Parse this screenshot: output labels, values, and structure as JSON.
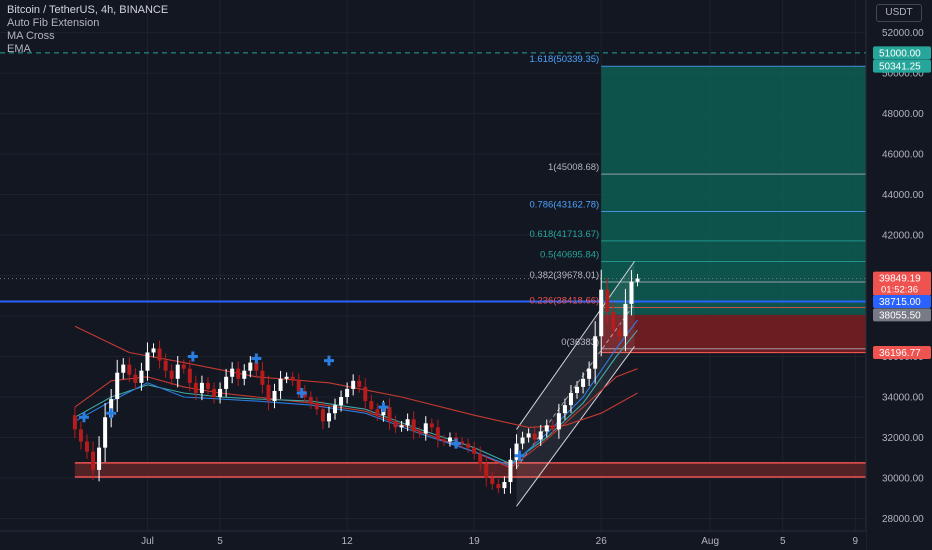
{
  "header": {
    "title": "Bitcoin / TetherUS, 4h, BINANCE",
    "indicators": [
      "Auto Fib Extension",
      "MA Cross",
      "EMA"
    ],
    "currency": "USDT"
  },
  "colors": {
    "background": "#131722",
    "bull": "#ffffff",
    "bear": "#b71c1c",
    "target_zone": "#0e5e52",
    "stop_zone": "#7d1f22",
    "support_zone": "#5a2428",
    "line_blue": "#2962ff",
    "ma_red": "#c43a31",
    "ma_teal": "#3fa9a5",
    "ema_blue": "#2a7de1",
    "fib_blue": "#4da3ff",
    "fib_teal": "#26a69a",
    "fib_red": "#ef5350",
    "fib_grey": "#b2b5be"
  },
  "chart_data": {
    "type": "candlestick",
    "symbol": "Bitcoin / TetherUS",
    "interval": "4h",
    "exchange": "BINANCE",
    "currency": "USDT",
    "y_axis": {
      "min": 27200,
      "max": 53300,
      "ticks": [
        "52000.00",
        "50000.00",
        "48000.00",
        "46000.00",
        "44000.00",
        "42000.00",
        "40000.00",
        "38000.00",
        "36000.00",
        "34000.00",
        "32000.00",
        "30000.00",
        "28000.00"
      ]
    },
    "x_axis": {
      "labels": [
        {
          "text": "Jul",
          "date": "2021-07-01"
        },
        {
          "text": "5",
          "date": "2021-07-05"
        },
        {
          "text": "12",
          "date": "2021-07-12"
        },
        {
          "text": "19",
          "date": "2021-07-19"
        },
        {
          "text": "26",
          "date": "2021-07-26"
        },
        {
          "text": "Aug",
          "date": "2021-08-01"
        },
        {
          "text": "5",
          "date": "2021-08-05"
        },
        {
          "text": "9",
          "date": "2021-08-09"
        }
      ]
    },
    "fib_levels": [
      {
        "label": "1.618(50339.35)",
        "value": 50339.35,
        "color": "#4da3ff"
      },
      {
        "label": "1(45008.68)",
        "value": 45008.68,
        "color": "#b2b5be"
      },
      {
        "label": "0.786(43162.78)",
        "value": 43162.78,
        "color": "#4da3ff"
      },
      {
        "label": "0.618(41713.67)",
        "value": 41713.67,
        "color": "#26a69a"
      },
      {
        "label": "0.5(40695.84)",
        "value": 40695.84,
        "color": "#26a69a"
      },
      {
        "label": "0.382(39678.01)",
        "value": 39678.01,
        "color": "#b2b5be"
      },
      {
        "label": "0.236(38418.66)",
        "value": 38418.66,
        "color": "#ef5350"
      },
      {
        "label": "0(36383)",
        "value": 36383,
        "color": "#b2b5be"
      }
    ],
    "price_tags": [
      {
        "text": "51000.00",
        "value": 51000,
        "color": "#26a69a"
      },
      {
        "text": "50341.25",
        "value": 50341.25,
        "color": "#26a69a"
      },
      {
        "text": "39849.19",
        "value": 39849.19,
        "sub": "01:52:36",
        "color": "#ef5350"
      },
      {
        "text": "38715.00",
        "value": 38715,
        "color": "#2962ff"
      },
      {
        "text": "38055.50",
        "value": 38055.5,
        "color": "#787b86"
      },
      {
        "text": "36196.77",
        "value": 36196.77,
        "color": "#ef5350"
      }
    ],
    "zones": [
      {
        "kind": "target",
        "x_start": "2021-07-26T00:00",
        "x_end": "2021-08-11",
        "y_low": 38055.5,
        "y_high": 50341.25
      },
      {
        "kind": "stop",
        "x_start": "2021-07-26T00:00",
        "x_end": "2021-08-11",
        "y_low": 36196.77,
        "y_high": 38055.5
      },
      {
        "kind": "support",
        "x_start": "2021-06-27",
        "x_end": "2021-08-11",
        "y_low": 30050,
        "y_high": 30750
      }
    ],
    "horizontal_lines": [
      {
        "value": 51000,
        "style": "dashed",
        "color": "#26a69a"
      },
      {
        "value": 38715,
        "style": "solid",
        "color": "#2962ff"
      },
      {
        "value": 39849.19,
        "style": "dotted",
        "color": "#787b86"
      }
    ],
    "channel": {
      "lower": [
        [
          "2021-07-21T08:00",
          28600
        ],
        [
          "2021-07-27T20:00",
          36500
        ]
      ],
      "upper": [
        [
          "2021-07-21T08:00",
          32400
        ],
        [
          "2021-07-27T20:00",
          40700
        ]
      ]
    },
    "series": [
      {
        "name": "MA Cross (slow)",
        "color": "#c43a31",
        "points": [
          [
            "2021-06-27",
            37500
          ],
          [
            "2021-06-30",
            36200
          ],
          [
            "2021-07-03",
            35700
          ],
          [
            "2021-07-07",
            35000
          ],
          [
            "2021-07-11",
            34700
          ],
          [
            "2021-07-15",
            34000
          ],
          [
            "2021-07-19",
            33100
          ],
          [
            "2021-07-22",
            32500
          ],
          [
            "2021-07-24",
            32600
          ],
          [
            "2021-07-26",
            33200
          ],
          [
            "2021-07-28",
            34200
          ]
        ]
      },
      {
        "name": "MA Cross (fast)",
        "color": "#c43a31",
        "points": [
          [
            "2021-06-27",
            33500
          ],
          [
            "2021-06-29",
            34800
          ],
          [
            "2021-07-01",
            35000
          ],
          [
            "2021-07-03",
            34500
          ],
          [
            "2021-07-05",
            34200
          ],
          [
            "2021-07-07",
            34000
          ],
          [
            "2021-07-10",
            33700
          ],
          [
            "2021-07-13",
            33300
          ],
          [
            "2021-07-16",
            32300
          ],
          [
            "2021-07-19",
            31300
          ],
          [
            "2021-07-21",
            30500
          ],
          [
            "2021-07-23",
            31900
          ],
          [
            "2021-07-25",
            33500
          ],
          [
            "2021-07-26T20:00",
            35000
          ],
          [
            "2021-07-28",
            35400
          ]
        ]
      },
      {
        "name": "EMA (teal)",
        "color": "#3fa9a5",
        "points": [
          [
            "2021-06-27",
            33000
          ],
          [
            "2021-06-29",
            34000
          ],
          [
            "2021-07-01",
            34600
          ],
          [
            "2021-07-03",
            34200
          ],
          [
            "2021-07-05",
            34000
          ],
          [
            "2021-07-07",
            33900
          ],
          [
            "2021-07-10",
            33800
          ],
          [
            "2021-07-13",
            33400
          ],
          [
            "2021-07-16",
            32400
          ],
          [
            "2021-07-19",
            31500
          ],
          [
            "2021-07-21",
            30700
          ],
          [
            "2021-07-23",
            32000
          ],
          [
            "2021-07-25",
            33700
          ],
          [
            "2021-07-26T20:00",
            36000
          ],
          [
            "2021-07-28",
            37300
          ]
        ]
      },
      {
        "name": "EMA (blue)",
        "color": "#2a7de1",
        "points": [
          [
            "2021-06-27",
            32800
          ],
          [
            "2021-06-29",
            33800
          ],
          [
            "2021-07-01",
            34700
          ],
          [
            "2021-07-03",
            34000
          ],
          [
            "2021-07-05",
            33900
          ],
          [
            "2021-07-07",
            33800
          ],
          [
            "2021-07-10",
            33600
          ],
          [
            "2021-07-13",
            33200
          ],
          [
            "2021-07-16",
            32200
          ],
          [
            "2021-07-19",
            31300
          ],
          [
            "2021-07-21",
            30600
          ],
          [
            "2021-07-23",
            32200
          ],
          [
            "2021-07-25",
            34000
          ],
          [
            "2021-07-26T20:00",
            36400
          ],
          [
            "2021-07-28",
            37800
          ]
        ]
      }
    ],
    "signal_markers": [
      {
        "date": "2021-06-27T12:00",
        "value": 33000
      },
      {
        "date": "2021-06-29T00:00",
        "value": 33200
      },
      {
        "date": "2021-07-03T12:00",
        "value": 36000
      },
      {
        "date": "2021-07-07T00:00",
        "value": 35900
      },
      {
        "date": "2021-07-09T12:00",
        "value": 34200
      },
      {
        "date": "2021-07-11T00:00",
        "value": 35800
      },
      {
        "date": "2021-07-14T00:00",
        "value": 33500
      },
      {
        "date": "2021-07-18T00:00",
        "value": 31700
      },
      {
        "date": "2021-07-21T12:00",
        "value": 31100
      }
    ],
    "ohlc": [
      [
        "2021-06-27T00:00",
        33100,
        32400
      ],
      [
        "2021-06-27T08:00",
        32400,
        31800
      ],
      [
        "2021-06-27T16:00",
        31800,
        31300
      ],
      [
        "2021-06-28T00:00",
        31300,
        30400
      ],
      [
        "2021-06-28T08:00",
        30400,
        31500
      ],
      [
        "2021-06-28T16:00",
        31500,
        33000
      ],
      [
        "2021-06-29T00:00",
        33000,
        33900
      ],
      [
        "2021-06-29T08:00",
        33900,
        35200
      ],
      [
        "2021-06-29T16:00",
        35200,
        35600
      ],
      [
        "2021-06-30T00:00",
        35600,
        35100
      ],
      [
        "2021-06-30T08:00",
        35100,
        34700
      ],
      [
        "2021-06-30T16:00",
        34700,
        35300
      ],
      [
        "2021-07-01T00:00",
        35300,
        36200
      ],
      [
        "2021-07-01T08:00",
        36200,
        36400
      ],
      [
        "2021-07-01T16:00",
        36400,
        35800
      ],
      [
        "2021-07-02T00:00",
        35800,
        35300
      ],
      [
        "2021-07-02T08:00",
        35300,
        34900
      ],
      [
        "2021-07-02T16:00",
        34900,
        35600
      ],
      [
        "2021-07-03T00:00",
        35600,
        35400
      ],
      [
        "2021-07-03T08:00",
        35400,
        34700
      ],
      [
        "2021-07-03T16:00",
        34700,
        34200
      ],
      [
        "2021-07-04T00:00",
        34200,
        34700
      ],
      [
        "2021-07-04T08:00",
        34700,
        34400
      ],
      [
        "2021-07-04T16:00",
        34400,
        34000
      ],
      [
        "2021-07-05T00:00",
        34000,
        34400
      ],
      [
        "2021-07-05T08:00",
        34400,
        35000
      ],
      [
        "2021-07-05T16:00",
        35000,
        35400
      ],
      [
        "2021-07-06T00:00",
        35400,
        34900
      ],
      [
        "2021-07-06T08:00",
        34900,
        35300
      ],
      [
        "2021-07-06T16:00",
        35300,
        35700
      ],
      [
        "2021-07-07T00:00",
        35700,
        35300
      ],
      [
        "2021-07-07T08:00",
        35300,
        34600
      ],
      [
        "2021-07-07T16:00",
        34600,
        33800
      ],
      [
        "2021-07-08T00:00",
        33800,
        34300
      ],
      [
        "2021-07-08T08:00",
        34300,
        34900
      ],
      [
        "2021-07-08T16:00",
        34900,
        35000
      ],
      [
        "2021-07-09T00:00",
        35000,
        34800
      ],
      [
        "2021-07-09T08:00",
        34800,
        34300
      ],
      [
        "2021-07-09T16:00",
        34300,
        34000
      ],
      [
        "2021-07-10T00:00",
        34000,
        33700
      ],
      [
        "2021-07-10T08:00",
        33700,
        33400
      ],
      [
        "2021-07-10T16:00",
        33400,
        32800
      ],
      [
        "2021-07-11T00:00",
        32800,
        33200
      ],
      [
        "2021-07-11T08:00",
        33200,
        33600
      ],
      [
        "2021-07-11T16:00",
        33600,
        34000
      ],
      [
        "2021-07-12T00:00",
        34000,
        34400
      ],
      [
        "2021-07-12T08:00",
        34400,
        34800
      ],
      [
        "2021-07-12T16:00",
        34800,
        34500
      ],
      [
        "2021-07-13T00:00",
        34500,
        33800
      ],
      [
        "2021-07-13T08:00",
        33800,
        33400
      ],
      [
        "2021-07-13T16:00",
        33400,
        33100
      ],
      [
        "2021-07-14T00:00",
        33100,
        33500
      ],
      [
        "2021-07-14T08:00",
        33500,
        32800
      ],
      [
        "2021-07-14T16:00",
        32800,
        32500
      ],
      [
        "2021-07-15T00:00",
        32500,
        32600
      ],
      [
        "2021-07-15T08:00",
        32600,
        32900
      ],
      [
        "2021-07-15T16:00",
        32900,
        32300
      ],
      [
        "2021-07-16T00:00",
        32300,
        32200
      ],
      [
        "2021-07-16T08:00",
        32200,
        32700
      ],
      [
        "2021-07-16T16:00",
        32700,
        32500
      ],
      [
        "2021-07-17T00:00",
        32500,
        31900
      ],
      [
        "2021-07-17T08:00",
        31900,
        31800
      ],
      [
        "2021-07-17T16:00",
        31800,
        32000
      ],
      [
        "2021-07-18T00:00",
        32000,
        31800
      ],
      [
        "2021-07-18T08:00",
        31800,
        31700
      ],
      [
        "2021-07-18T16:00",
        31700,
        31500
      ],
      [
        "2021-07-19T00:00",
        31500,
        31200
      ],
      [
        "2021-07-19T08:00",
        31200,
        30700
      ],
      [
        "2021-07-19T16:00",
        30700,
        30000
      ],
      [
        "2021-07-20T00:00",
        30000,
        29700
      ],
      [
        "2021-07-20T08:00",
        29700,
        29500
      ],
      [
        "2021-07-20T16:00",
        29500,
        29800
      ],
      [
        "2021-07-21T00:00",
        29800,
        30900
      ],
      [
        "2021-07-21T08:00",
        30900,
        31700
      ],
      [
        "2021-07-21T16:00",
        31700,
        32000
      ],
      [
        "2021-07-22T00:00",
        32000,
        32200
      ],
      [
        "2021-07-22T08:00",
        32200,
        31900
      ],
      [
        "2021-07-22T16:00",
        31900,
        32300
      ],
      [
        "2021-07-23T00:00",
        32300,
        32600
      ],
      [
        "2021-07-23T08:00",
        32600,
        32400
      ],
      [
        "2021-07-23T16:00",
        32400,
        33200
      ],
      [
        "2021-07-24T00:00",
        33200,
        33600
      ],
      [
        "2021-07-24T08:00",
        33600,
        34200
      ],
      [
        "2021-07-24T16:00",
        34200,
        34500
      ],
      [
        "2021-07-25T00:00",
        34500,
        34900
      ],
      [
        "2021-07-25T08:00",
        34900,
        35400
      ],
      [
        "2021-07-25T16:00",
        35400,
        37000
      ],
      [
        "2021-07-26T00:00",
        37000,
        39300
      ],
      [
        "2021-07-26T08:00",
        39300,
        38200
      ],
      [
        "2021-07-26T16:00",
        38200,
        37300
      ],
      [
        "2021-07-27T00:00",
        37300,
        37000
      ],
      [
        "2021-07-27T08:00",
        37000,
        38600
      ],
      [
        "2021-07-27T16:00",
        38600,
        39700
      ],
      [
        "2021-07-28T00:00",
        39700,
        39849.19
      ]
    ]
  }
}
